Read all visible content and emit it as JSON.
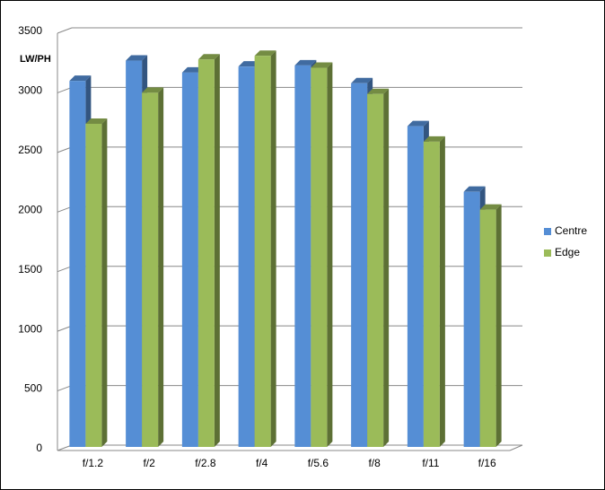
{
  "chart_data": {
    "type": "bar3d",
    "y_label": "LW/PH",
    "categories": [
      "f/1.2",
      "f/2",
      "f/2.8",
      "f/4",
      "f/5.6",
      "f/8",
      "f/11",
      "f/16"
    ],
    "series": [
      {
        "name": "Centre",
        "color": "#558ed5",
        "values": [
          3070,
          3240,
          3140,
          3190,
          3200,
          3050,
          2690,
          2140
        ]
      },
      {
        "name": "Edge",
        "color": "#9bbb59",
        "values": [
          2710,
          2970,
          3250,
          3280,
          3180,
          2960,
          2560,
          1990
        ]
      }
    ],
    "ylim": [
      0,
      3500
    ],
    "yticks": [
      0,
      500,
      1000,
      1500,
      2000,
      2500,
      3000,
      3500
    ],
    "grid": true,
    "legend": "right"
  }
}
